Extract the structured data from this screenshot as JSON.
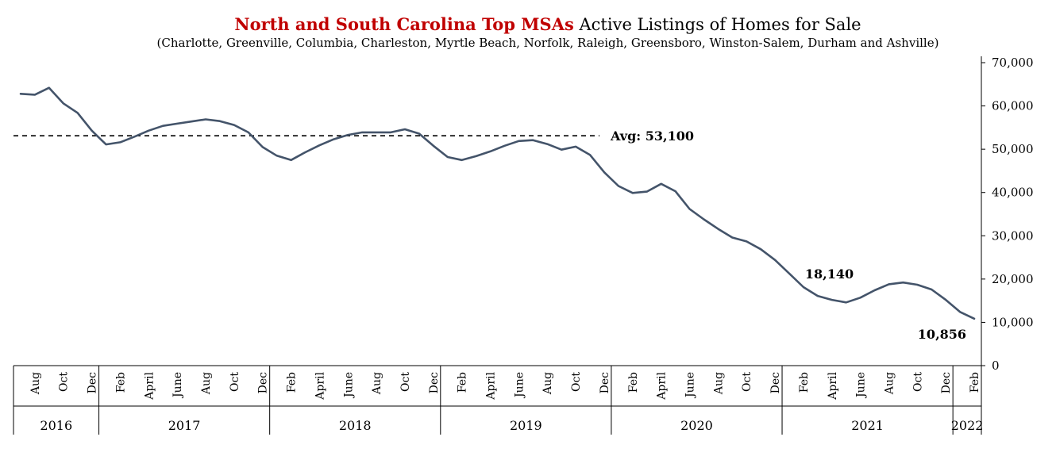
{
  "chart_data": {
    "type": "line",
    "title_highlight": "North and South Carolina Top MSAs",
    "title_rest": "Active Listings of Homes for Sale",
    "subtitle": "(Charlotte, Greenville, Columbia, Charleston, Myrtle Beach, Norfolk, Raleigh, Greensboro, Winston-Salem, Durham and Ashville)",
    "xlabel": "",
    "ylabel": "",
    "ylim": [
      0,
      70000
    ],
    "y_ticks": [
      0,
      10000,
      20000,
      30000,
      40000,
      50000,
      60000,
      70000
    ],
    "y_tick_labels": [
      "0",
      "10,000",
      "20,000",
      "30,000",
      "40,000",
      "50,000",
      "60,000",
      "70,000"
    ],
    "y_axis_side": "right",
    "grid": false,
    "line_color": "#44546a",
    "x": [
      "2016-07",
      "2016-08",
      "2016-09",
      "2016-10",
      "2016-11",
      "2016-12",
      "2017-01",
      "2017-02",
      "2017-03",
      "2017-04",
      "2017-05",
      "2017-06",
      "2017-07",
      "2017-08",
      "2017-09",
      "2017-10",
      "2017-11",
      "2017-12",
      "2018-01",
      "2018-02",
      "2018-03",
      "2018-04",
      "2018-05",
      "2018-06",
      "2018-07",
      "2018-08",
      "2018-09",
      "2018-10",
      "2018-11",
      "2018-12",
      "2019-01",
      "2019-02",
      "2019-03",
      "2019-04",
      "2019-05",
      "2019-06",
      "2019-07",
      "2019-08",
      "2019-09",
      "2019-10",
      "2019-11",
      "2019-12",
      "2020-01",
      "2020-02",
      "2020-03",
      "2020-04",
      "2020-05",
      "2020-06",
      "2020-07",
      "2020-08",
      "2020-09",
      "2020-10",
      "2020-11",
      "2020-12",
      "2021-01",
      "2021-02",
      "2021-03",
      "2021-04",
      "2021-05",
      "2021-06",
      "2021-07",
      "2021-08",
      "2021-09",
      "2021-10",
      "2021-11",
      "2021-12",
      "2022-01",
      "2022-02"
    ],
    "values": [
      62800,
      62600,
      64200,
      60600,
      58400,
      54300,
      51100,
      51600,
      52900,
      54300,
      55400,
      55900,
      56400,
      56900,
      56500,
      55600,
      53900,
      50500,
      48500,
      47500,
      49300,
      50900,
      52300,
      53300,
      53900,
      53900,
      53900,
      54600,
      53600,
      50800,
      48200,
      47500,
      48400,
      49500,
      50800,
      51900,
      52100,
      51200,
      49900,
      50600,
      48700,
      44700,
      41500,
      39900,
      40200,
      42000,
      40300,
      36200,
      33800,
      31600,
      29600,
      28700,
      26900,
      24400,
      21300,
      18140,
      16100,
      15200,
      14600,
      15700,
      17400,
      18800,
      19200,
      18700,
      17600,
      15200,
      12400,
      10856
    ],
    "year_labels": [
      {
        "label": "2016",
        "start": "2016-07",
        "end": "2016-12"
      },
      {
        "label": "2017",
        "start": "2017-01",
        "end": "2017-12"
      },
      {
        "label": "2018",
        "start": "2018-01",
        "end": "2018-12"
      },
      {
        "label": "2019",
        "start": "2019-01",
        "end": "2019-12"
      },
      {
        "label": "2020",
        "start": "2020-01",
        "end": "2020-12"
      },
      {
        "label": "2021",
        "start": "2021-01",
        "end": "2021-12"
      },
      {
        "label": "2022",
        "start": "2022-01",
        "end": "2022-02"
      }
    ],
    "x_tick_labels": [
      {
        "x": "2016-08",
        "label": "Aug"
      },
      {
        "x": "2016-10",
        "label": "Oct"
      },
      {
        "x": "2016-12",
        "label": "Dec"
      },
      {
        "x": "2017-02",
        "label": "Feb"
      },
      {
        "x": "2017-04",
        "label": "April"
      },
      {
        "x": "2017-06",
        "label": "June"
      },
      {
        "x": "2017-08",
        "label": "Aug"
      },
      {
        "x": "2017-10",
        "label": "Oct"
      },
      {
        "x": "2017-12",
        "label": "Dec"
      },
      {
        "x": "2018-02",
        "label": "Feb"
      },
      {
        "x": "2018-04",
        "label": "April"
      },
      {
        "x": "2018-06",
        "label": "June"
      },
      {
        "x": "2018-08",
        "label": "Aug"
      },
      {
        "x": "2018-10",
        "label": "Oct"
      },
      {
        "x": "2018-12",
        "label": "Dec"
      },
      {
        "x": "2019-02",
        "label": "Feb"
      },
      {
        "x": "2019-04",
        "label": "April"
      },
      {
        "x": "2019-06",
        "label": "June"
      },
      {
        "x": "2019-08",
        "label": "Aug"
      },
      {
        "x": "2019-10",
        "label": "Oct"
      },
      {
        "x": "2019-12",
        "label": "Dec"
      },
      {
        "x": "2020-02",
        "label": "Feb"
      },
      {
        "x": "2020-04",
        "label": "April"
      },
      {
        "x": "2020-06",
        "label": "June"
      },
      {
        "x": "2020-08",
        "label": "Aug"
      },
      {
        "x": "2020-10",
        "label": "Oct"
      },
      {
        "x": "2020-12",
        "label": "Dec"
      },
      {
        "x": "2021-02",
        "label": "Feb"
      },
      {
        "x": "2021-04",
        "label": "April"
      },
      {
        "x": "2021-06",
        "label": "June"
      },
      {
        "x": "2021-08",
        "label": "Aug"
      },
      {
        "x": "2021-10",
        "label": "Oct"
      },
      {
        "x": "2021-12",
        "label": "Dec"
      },
      {
        "x": "2022-02",
        "label": "Feb"
      }
    ],
    "average_line": {
      "value": 53100,
      "label": "Avg: 53,100",
      "style": "dashed"
    },
    "annotations": [
      {
        "x": "2021-02",
        "y": 18140,
        "label": "18,140"
      },
      {
        "x": "2022-02",
        "y": 10856,
        "label": "10,856"
      }
    ]
  }
}
